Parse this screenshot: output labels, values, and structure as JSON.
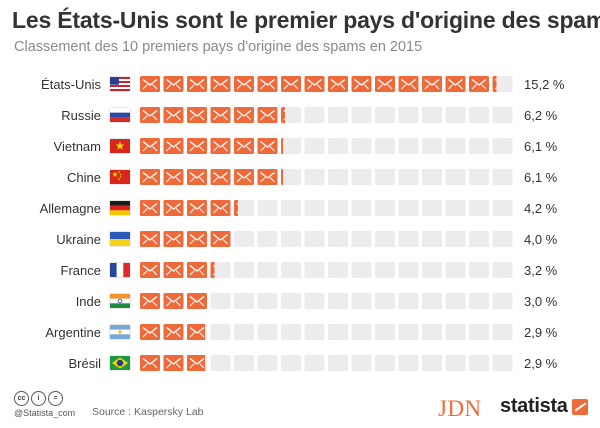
{
  "header": {
    "title": "Les États-Unis sont le premier pays d'origine des spams",
    "subtitle": "Classement des 10 premiers pays d'origine des spams en 2015"
  },
  "colors": {
    "filled": "#ef6a3a",
    "empty": "#ececec",
    "text": "#333333"
  },
  "chart_data": {
    "type": "bar",
    "categories": [
      "États-Unis",
      "Russie",
      "Vietnam",
      "Chine",
      "Allemagne",
      "Ukraine",
      "France",
      "Inde",
      "Argentine",
      "Brésil"
    ],
    "values": [
      15.2,
      6.2,
      6.1,
      6.1,
      4.2,
      4.0,
      3.2,
      3.0,
      2.9,
      2.9
    ],
    "value_labels": [
      "15,2 %",
      "6,2 %",
      "6,1 %",
      "6,1 %",
      "4,2 %",
      "4,0 %",
      "3,2 %",
      "3,0 %",
      "2,9 %",
      "2,9 %"
    ],
    "flags": [
      "us-flag",
      "russia-flag",
      "vietnam-flag",
      "china-flag",
      "germany-flag",
      "ukraine-flag",
      "france-flag",
      "india-flag",
      "argentina-flag",
      "brazil-flag"
    ],
    "unit_icon": "envelope-icon",
    "icon_scale_max": 16
  },
  "footer": {
    "cc_icons": [
      "cc",
      "i",
      "="
    ],
    "handle": "@Statista_com",
    "source": "Source : Kaspersky Lab",
    "logo_jdn": "JDN",
    "logo_statista": "statista"
  }
}
